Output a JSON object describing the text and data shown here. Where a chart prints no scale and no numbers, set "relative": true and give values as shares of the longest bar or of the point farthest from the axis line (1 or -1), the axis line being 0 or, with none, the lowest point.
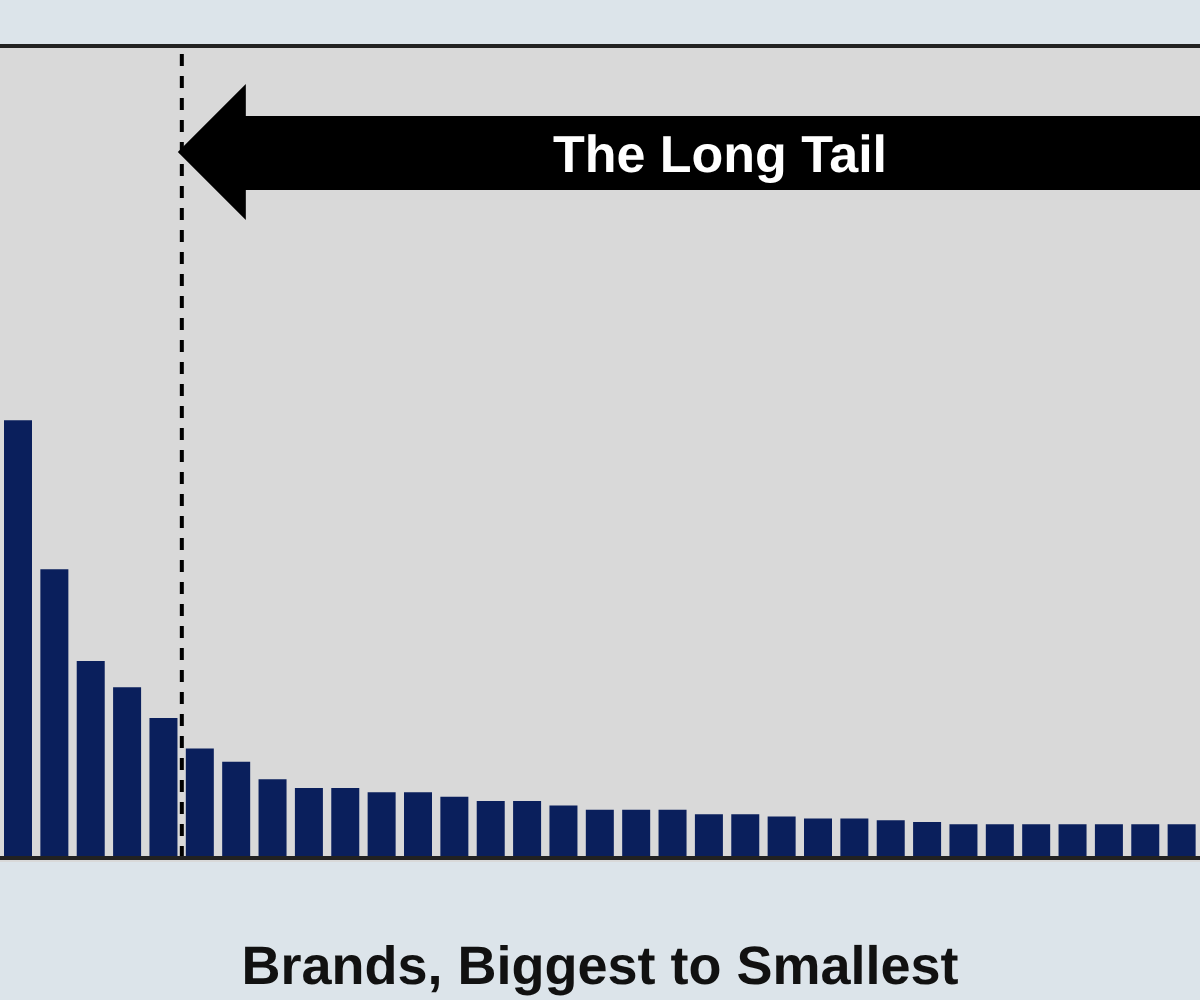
{
  "chart_data": {
    "type": "bar",
    "relative": true,
    "xlabel": "Brands, Biggest to Smallest",
    "categories": [
      null,
      null,
      null,
      null,
      null,
      null,
      null,
      null,
      null,
      null,
      null,
      null,
      null,
      null,
      null,
      null,
      null,
      null,
      null,
      null,
      null,
      null,
      null,
      null,
      null,
      null,
      null,
      null,
      null,
      null,
      null,
      null,
      null
    ],
    "values": [
      1,
      0.66,
      0.45,
      0.39,
      0.32,
      0.25,
      0.22,
      0.18,
      0.16,
      0.16,
      0.15,
      0.15,
      0.14,
      0.13,
      0.13,
      0.12,
      0.11,
      0.11,
      0.11,
      0.1,
      0.1,
      0.095,
      0.09,
      0.09,
      0.086,
      0.082,
      0.077,
      0.077,
      0.077,
      0.077,
      0.077,
      0.077,
      0.077
    ],
    "color": "#0a1f5c",
    "grid": false,
    "legend": false,
    "annotations": [
      "The Long Tail"
    ]
  }
}
